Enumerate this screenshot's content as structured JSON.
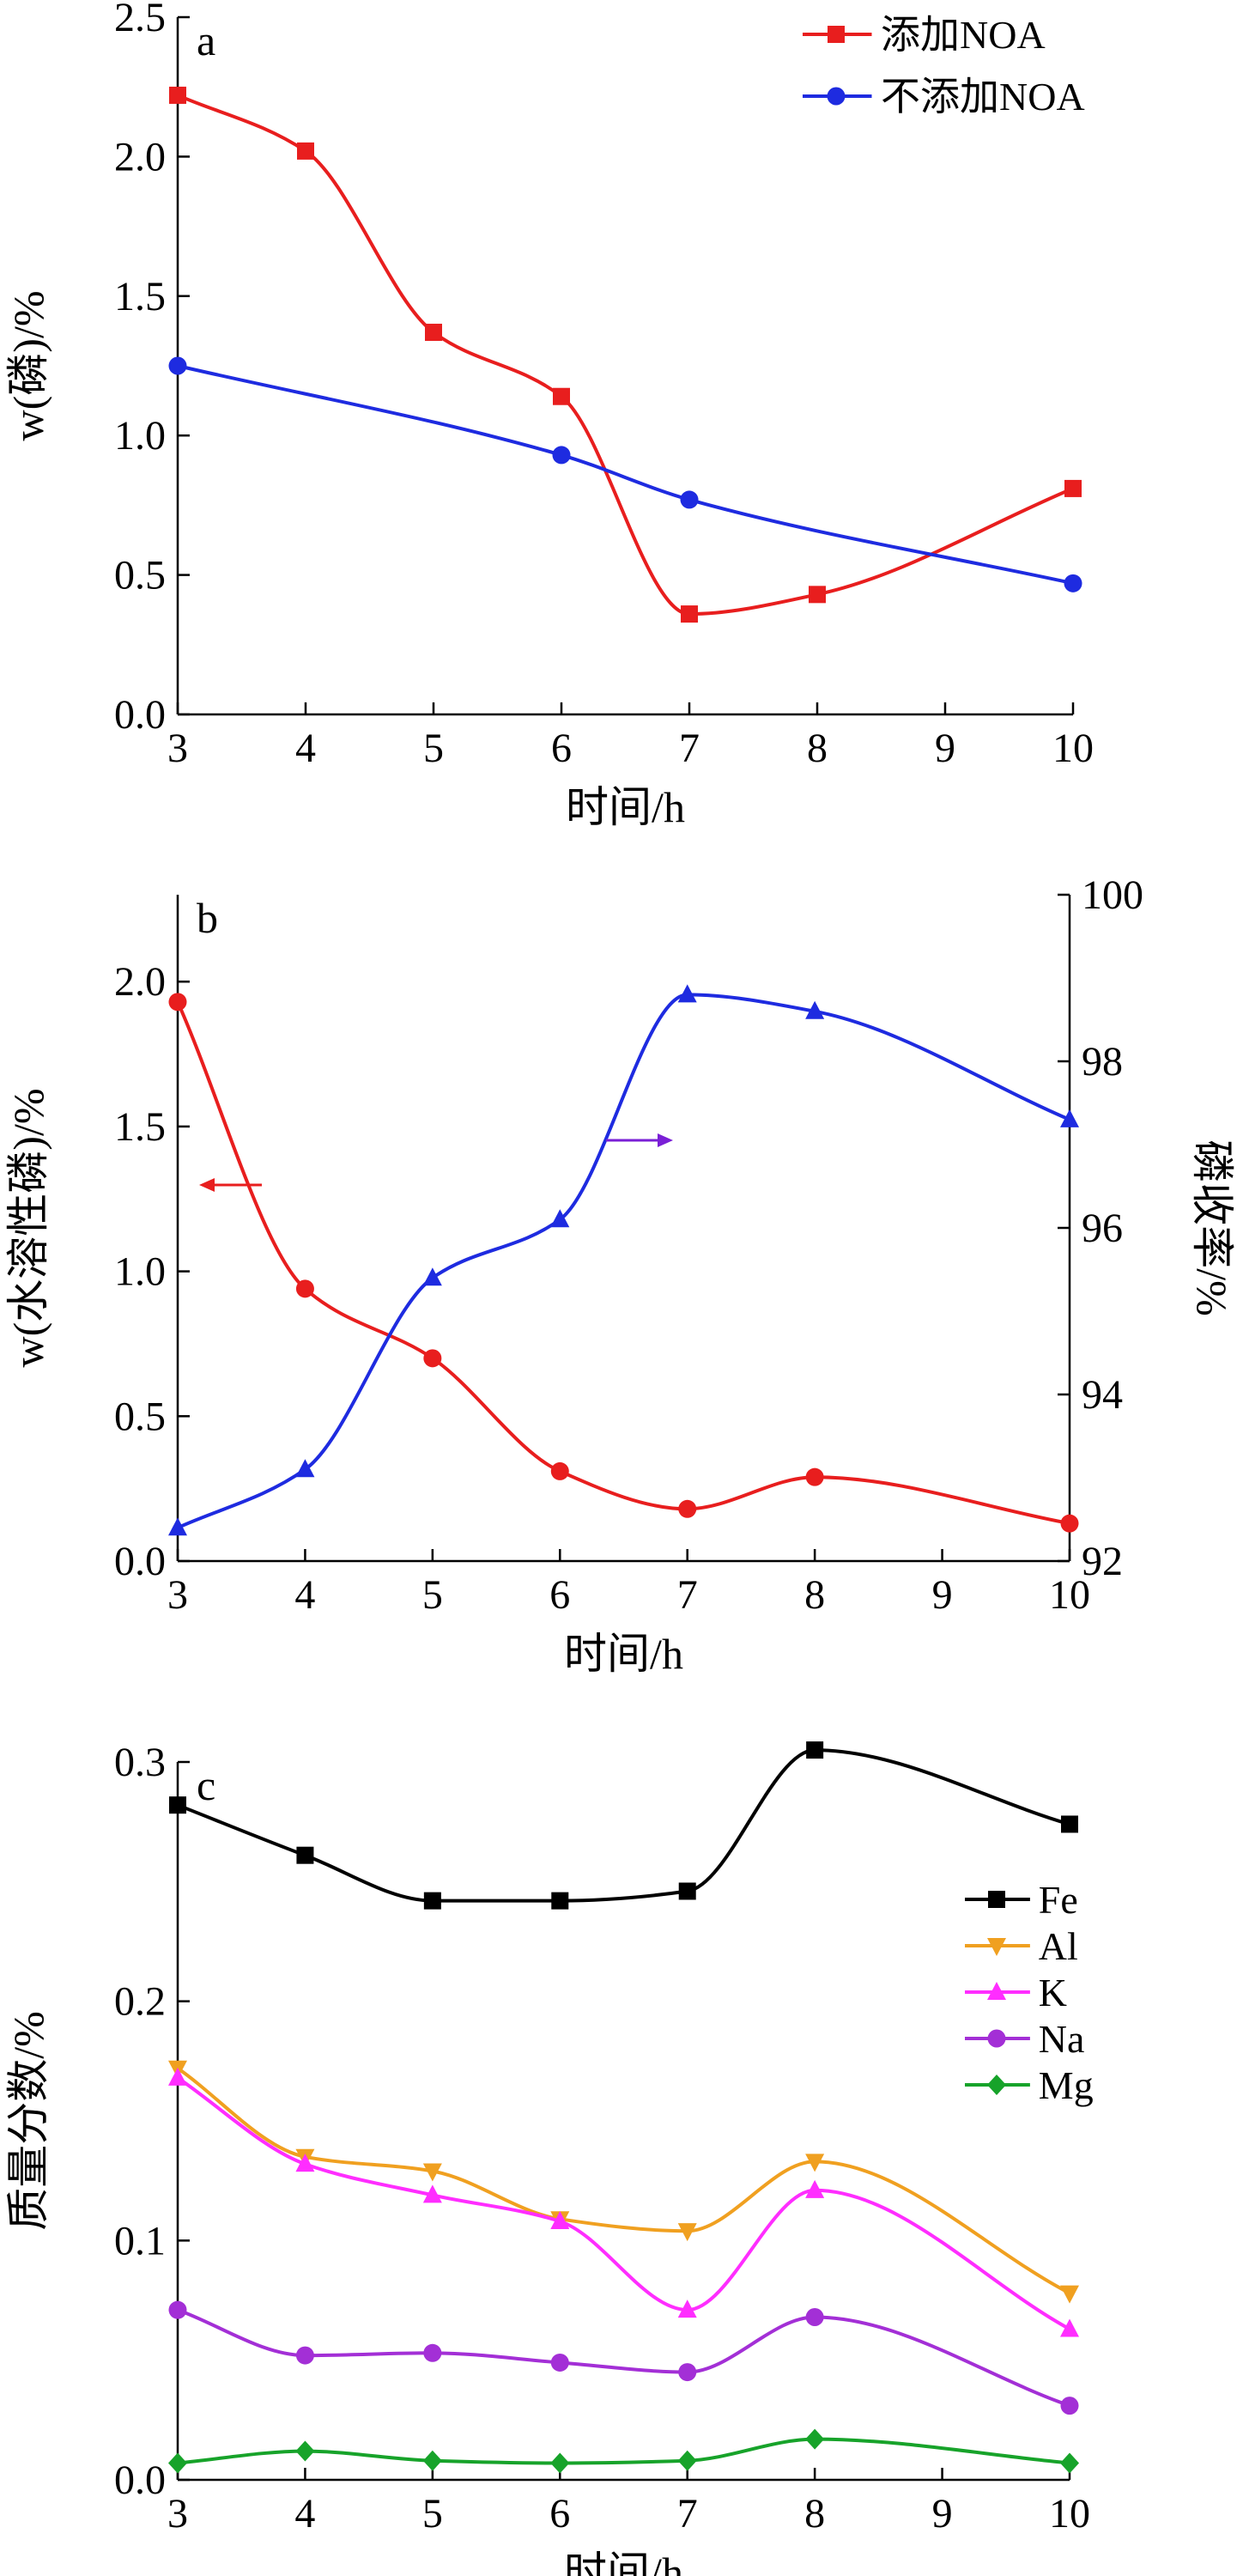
{
  "colors": {
    "red": "#e81e1e",
    "blue": "#1e2be0",
    "arrow_purple": "#7a1fd6",
    "black": "#000000",
    "orange": "#f0a020",
    "magenta": "#ff2dff",
    "purple": "#a32fd6",
    "green": "#17a32a"
  },
  "chart_data": [
    {
      "type": "line",
      "panel_label": "a",
      "x": [
        3,
        4,
        5,
        6,
        7,
        8,
        10
      ],
      "xlabel": "时间/h",
      "ylabel": "w(磷)/%",
      "xlim": [
        3,
        10
      ],
      "ylim": [
        0,
        2.5
      ],
      "x_ticks": [
        "3",
        "4",
        "5",
        "6",
        "7",
        "8",
        "9",
        "10"
      ],
      "y_ticks": [
        "0.0",
        "0.5",
        "1.0",
        "1.5",
        "2.0",
        "2.5"
      ],
      "grid": false,
      "legend": "top-right",
      "series": [
        {
          "name": "添加NOA",
          "marker": "square",
          "color": "#e81e1e",
          "x": [
            3,
            4,
            5,
            6,
            7,
            8,
            10
          ],
          "values": [
            2.22,
            2.02,
            1.37,
            1.14,
            0.36,
            0.43,
            0.81
          ]
        },
        {
          "name": "不添加NOA",
          "marker": "circle",
          "color": "#1e2be0",
          "x": [
            3,
            6,
            7,
            10
          ],
          "values": [
            1.25,
            0.93,
            0.77,
            0.47
          ]
        }
      ]
    },
    {
      "type": "line",
      "panel_label": "b",
      "xlabel": "时间/h",
      "ylabel": "w(水溶性磷)/%",
      "ylabel_right": "磷收率/%",
      "xlim": [
        3,
        10
      ],
      "ylim": [
        0,
        2.3
      ],
      "ylim_right": [
        92,
        100
      ],
      "x_ticks": [
        "3",
        "4",
        "5",
        "6",
        "7",
        "8",
        "9",
        "10"
      ],
      "y_ticks": [
        "0.0",
        "0.5",
        "1.0",
        "1.5",
        "2.0"
      ],
      "y_ticks_right": [
        "92",
        "94",
        "96",
        "98",
        "100"
      ],
      "grid": false,
      "series": [
        {
          "axis": "left",
          "marker": "circle",
          "color": "#e81e1e",
          "x": [
            3,
            4,
            5,
            6,
            7,
            8,
            10
          ],
          "values": [
            1.93,
            0.94,
            0.7,
            0.31,
            0.18,
            0.29,
            0.13
          ]
        },
        {
          "axis": "right",
          "marker": "triangle",
          "color": "#1e2be0",
          "x": [
            3,
            4,
            5,
            6,
            7,
            8,
            10
          ],
          "values": [
            92.4,
            93.1,
            95.4,
            96.1,
            98.8,
            98.6,
            97.3
          ]
        }
      ]
    },
    {
      "type": "line",
      "panel_label": "c",
      "xlabel": "时间/h",
      "ylabel": "质量分数/%",
      "xlim": [
        3,
        10
      ],
      "ylim": [
        0,
        0.3
      ],
      "x_ticks": [
        "3",
        "4",
        "5",
        "6",
        "7",
        "8",
        "9",
        "10"
      ],
      "y_ticks": [
        "0.0",
        "0.1",
        "0.2",
        "0.3"
      ],
      "grid": false,
      "legend": "right",
      "series": [
        {
          "name": "Fe",
          "marker": "square",
          "color": "#000000",
          "x": [
            3,
            4,
            5,
            6,
            7,
            8,
            10
          ],
          "values": [
            0.282,
            0.261,
            0.242,
            0.242,
            0.246,
            0.305,
            0.274
          ]
        },
        {
          "name": "Al",
          "marker": "triangle-down",
          "color": "#f0a020",
          "x": [
            3,
            4,
            5,
            6,
            7,
            8,
            10
          ],
          "values": [
            0.172,
            0.135,
            0.129,
            0.109,
            0.104,
            0.133,
            0.078
          ]
        },
        {
          "name": "K",
          "marker": "triangle",
          "color": "#ff2dff",
          "x": [
            3,
            4,
            5,
            6,
            7,
            8,
            10
          ],
          "values": [
            0.168,
            0.132,
            0.119,
            0.108,
            0.071,
            0.121,
            0.063
          ]
        },
        {
          "name": "Na",
          "marker": "circle",
          "color": "#a32fd6",
          "x": [
            3,
            4,
            5,
            6,
            7,
            8,
            10
          ],
          "values": [
            0.071,
            0.052,
            0.053,
            0.049,
            0.045,
            0.068,
            0.031
          ]
        },
        {
          "name": "Mg",
          "marker": "diamond",
          "color": "#17a32a",
          "x": [
            3,
            4,
            5,
            6,
            7,
            8,
            10
          ],
          "values": [
            0.007,
            0.012,
            0.008,
            0.007,
            0.008,
            0.017,
            0.007
          ]
        }
      ]
    }
  ]
}
